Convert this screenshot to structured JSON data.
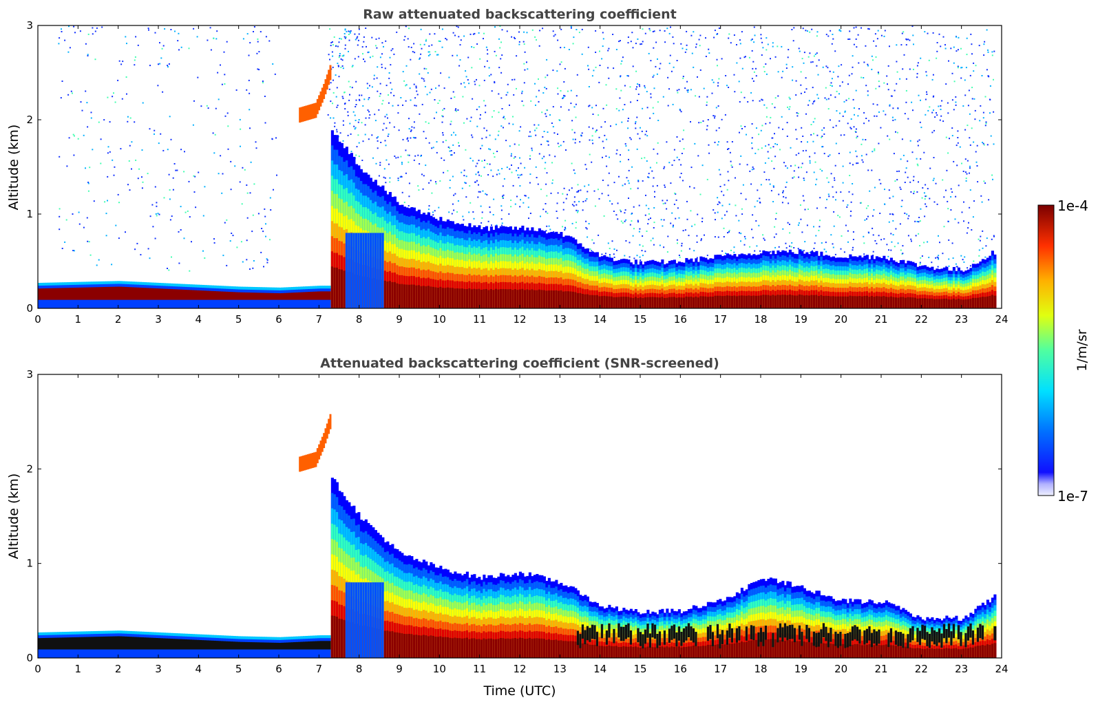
{
  "chart_data": [
    {
      "type": "heatmap",
      "title": "Raw attenuated backscattering coefficient",
      "xlabel": "",
      "ylabel": "Altitude (km)",
      "xlim": [
        0,
        24
      ],
      "ylim": [
        0,
        3
      ],
      "x_ticks": [
        0,
        1,
        2,
        3,
        4,
        5,
        6,
        7,
        8,
        9,
        10,
        11,
        12,
        13,
        14,
        15,
        16,
        17,
        18,
        19,
        20,
        21,
        22,
        23,
        24
      ],
      "y_ticks": [
        0,
        1,
        2,
        3
      ],
      "grid": false,
      "screened": false,
      "layers": {
        "surface_layer": [
          [
            0,
            0.27
          ],
          [
            1,
            0.28
          ],
          [
            2,
            0.29
          ],
          [
            3,
            0.27
          ],
          [
            4,
            0.25
          ],
          [
            5,
            0.23
          ],
          [
            6,
            0.22
          ],
          [
            7,
            0.24
          ]
        ],
        "cloud_top": [
          [
            7.3,
            1.9
          ],
          [
            8,
            1.5
          ],
          [
            9,
            1.1
          ],
          [
            10,
            0.95
          ],
          [
            11,
            0.85
          ],
          [
            12,
            0.85
          ],
          [
            13,
            0.8
          ],
          [
            14,
            0.55
          ],
          [
            15,
            0.48
          ],
          [
            16,
            0.5
          ],
          [
            17,
            0.55
          ],
          [
            18,
            0.6
          ],
          [
            19,
            0.6
          ],
          [
            20,
            0.55
          ],
          [
            21,
            0.55
          ],
          [
            22,
            0.45
          ],
          [
            23,
            0.4
          ],
          [
            23.8,
            0.6
          ]
        ],
        "elevated_cloud": [
          [
            6.5,
            2.05
          ],
          [
            6.9,
            2.1
          ],
          [
            7.1,
            2.3
          ],
          [
            7.3,
            2.55
          ]
        ],
        "noise_region_start_hour": 7.2
      }
    },
    {
      "type": "heatmap",
      "title": "Attenuated backscattering coefficient (SNR-screened)",
      "xlabel": "Time (UTC)",
      "ylabel": "Altitude (km)",
      "xlim": [
        0,
        24
      ],
      "ylim": [
        0,
        3
      ],
      "x_ticks": [
        0,
        1,
        2,
        3,
        4,
        5,
        6,
        7,
        8,
        9,
        10,
        11,
        12,
        13,
        14,
        15,
        16,
        17,
        18,
        19,
        20,
        21,
        22,
        23,
        24
      ],
      "y_ticks": [
        0,
        1,
        2,
        3
      ],
      "grid": false,
      "screened": true,
      "layers": {
        "surface_layer": [
          [
            0,
            0.27
          ],
          [
            1,
            0.28
          ],
          [
            2,
            0.29
          ],
          [
            3,
            0.27
          ],
          [
            4,
            0.25
          ],
          [
            5,
            0.23
          ],
          [
            6,
            0.22
          ],
          [
            7,
            0.24
          ]
        ],
        "cloud_top": [
          [
            7.3,
            1.9
          ],
          [
            8,
            1.5
          ],
          [
            9,
            1.1
          ],
          [
            10,
            0.95
          ],
          [
            11,
            0.85
          ],
          [
            12,
            0.9
          ],
          [
            13,
            0.8
          ],
          [
            14,
            0.55
          ],
          [
            15,
            0.48
          ],
          [
            16,
            0.5
          ],
          [
            17,
            0.6
          ],
          [
            18,
            0.85
          ],
          [
            19,
            0.75
          ],
          [
            20,
            0.6
          ],
          [
            21,
            0.6
          ],
          [
            22,
            0.42
          ],
          [
            23,
            0.42
          ],
          [
            23.8,
            0.65
          ]
        ],
        "elevated_cloud": [
          [
            6.5,
            2.05
          ],
          [
            6.9,
            2.1
          ],
          [
            7.1,
            2.3
          ],
          [
            7.3,
            2.55
          ]
        ]
      }
    }
  ],
  "colorbar": {
    "label": "1/m/sr",
    "max_label": "1e-4",
    "min_label": "1e-7",
    "colormap": "jet"
  }
}
